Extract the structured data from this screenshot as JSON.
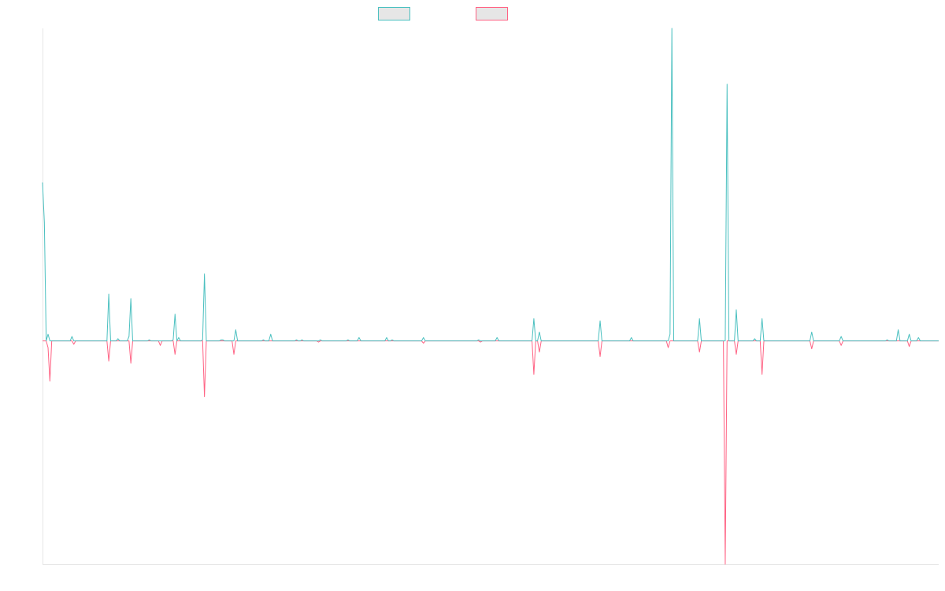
{
  "chart_data": {
    "type": "line",
    "title": "",
    "xlabel": "",
    "ylabel": "",
    "ylim": [
      -1.0,
      1.4
    ],
    "grid": false,
    "legend_position": "top-center",
    "colors": {
      "series_a": "#4bc0c0",
      "series_b": "#ff6384",
      "legend_fill": "#e6e6e6",
      "axis": "#e6e6e6"
    },
    "series": [
      {
        "key": "a",
        "color": "#4bc0c0",
        "points": [
          [
            0,
            0.71
          ],
          [
            1,
            0.53
          ],
          [
            2,
            0.0
          ],
          [
            3,
            0.03
          ],
          [
            4,
            0.0
          ],
          [
            15,
            0.0
          ],
          [
            16,
            0.02
          ],
          [
            17,
            0.0
          ],
          [
            18,
            0.0
          ],
          [
            19,
            0.0
          ],
          [
            35,
            0.0
          ],
          [
            36,
            0.21
          ],
          [
            37,
            0.0
          ],
          [
            40,
            0.0
          ],
          [
            41,
            0.01
          ],
          [
            42,
            0.0
          ],
          [
            46,
            0.0
          ],
          [
            47,
            0.02
          ],
          [
            48,
            0.19
          ],
          [
            49,
            0.0
          ],
          [
            57,
            0.0
          ],
          [
            58,
            0.005
          ],
          [
            59,
            0.0
          ],
          [
            70,
            0.0
          ],
          [
            71,
            0.005
          ],
          [
            72,
            0.12
          ],
          [
            73,
            0.0
          ],
          [
            74,
            0.015
          ],
          [
            75,
            0.0
          ],
          [
            86,
            0.0
          ],
          [
            87,
            0.005
          ],
          [
            88,
            0.3
          ],
          [
            89,
            0.0
          ],
          [
            96,
            0.0
          ],
          [
            97,
            0.005
          ],
          [
            98,
            0.005
          ],
          [
            99,
            0.0
          ],
          [
            104,
            0.0
          ],
          [
            105,
            0.05
          ],
          [
            106,
            0.0
          ],
          [
            119,
            0.0
          ],
          [
            120,
            0.005
          ],
          [
            121,
            0.0
          ],
          [
            123,
            0.0
          ],
          [
            124,
            0.03
          ],
          [
            125,
            0.0
          ],
          [
            137,
            0.0
          ],
          [
            138,
            0.005
          ],
          [
            139,
            0.0
          ],
          [
            140,
            0.0
          ],
          [
            141,
            0.005
          ],
          [
            142,
            0.0
          ],
          [
            150,
            0.0
          ],
          [
            151,
            0.005
          ],
          [
            152,
            0.0
          ],
          [
            165,
            0.0
          ],
          [
            166,
            0.005
          ],
          [
            167,
            0.0
          ],
          [
            171,
            0.0
          ],
          [
            172,
            0.015
          ],
          [
            173,
            0.0
          ],
          [
            186,
            0.0
          ],
          [
            187,
            0.015
          ],
          [
            188,
            0.0
          ],
          [
            189,
            0.0
          ],
          [
            190,
            0.005
          ],
          [
            191,
            0.0
          ],
          [
            206,
            0.0
          ],
          [
            207,
            0.015
          ],
          [
            208,
            0.0
          ],
          [
            236,
            0.0
          ],
          [
            237,
            0.005
          ],
          [
            238,
            0.0
          ],
          [
            246,
            0.0
          ],
          [
            247,
            0.015
          ],
          [
            248,
            0.0
          ],
          [
            266,
            0.0
          ],
          [
            267,
            0.1
          ],
          [
            268,
            0.0
          ],
          [
            269,
            0.0
          ],
          [
            270,
            0.04
          ],
          [
            271,
            0.0
          ],
          [
            302,
            0.0
          ],
          [
            303,
            0.09
          ],
          [
            304,
            0.0
          ],
          [
            319,
            0.0
          ],
          [
            320,
            0.015
          ],
          [
            321,
            0.0
          ],
          [
            340,
            0.0
          ],
          [
            341,
            0.03
          ],
          [
            342,
            1.4
          ],
          [
            343,
            0.0
          ],
          [
            356,
            0.0
          ],
          [
            357,
            0.1
          ],
          [
            358,
            0.0
          ],
          [
            371,
            0.0
          ],
          [
            372,
            1.15
          ],
          [
            373,
            0.0
          ],
          [
            376,
            0.0
          ],
          [
            377,
            0.14
          ],
          [
            378,
            0.0
          ],
          [
            386,
            0.0
          ],
          [
            387,
            0.01
          ],
          [
            388,
            0.0
          ],
          [
            390,
            0.0
          ],
          [
            391,
            0.1
          ],
          [
            392,
            0.0
          ],
          [
            417,
            0.0
          ],
          [
            418,
            0.04
          ],
          [
            419,
            0.0
          ],
          [
            433,
            0.0
          ],
          [
            434,
            0.02
          ],
          [
            435,
            0.0
          ],
          [
            458,
            0.0
          ],
          [
            459,
            0.005
          ],
          [
            460,
            0.0
          ],
          [
            464,
            0.0
          ],
          [
            465,
            0.05
          ],
          [
            466,
            0.0
          ],
          [
            470,
            0.0
          ],
          [
            471,
            0.03
          ],
          [
            472,
            0.0
          ],
          [
            475,
            0.0
          ],
          [
            476,
            0.015
          ],
          [
            477,
            0.0
          ],
          [
            487,
            0.0
          ]
        ]
      },
      {
        "key": "b",
        "color": "#ff6384",
        "points": [
          [
            0,
            0.0
          ],
          [
            1,
            0.0
          ],
          [
            2,
            0.0
          ],
          [
            3,
            -0.03
          ],
          [
            4,
            -0.18
          ],
          [
            5,
            0.0
          ],
          [
            15,
            0.0
          ],
          [
            16,
            0.0
          ],
          [
            17,
            -0.015
          ],
          [
            18,
            0.0
          ],
          [
            35,
            0.0
          ],
          [
            36,
            -0.09
          ],
          [
            37,
            0.0
          ],
          [
            47,
            0.0
          ],
          [
            48,
            -0.1
          ],
          [
            49,
            0.0
          ],
          [
            63,
            0.0
          ],
          [
            64,
            -0.02
          ],
          [
            65,
            0.0
          ],
          [
            71,
            0.0
          ],
          [
            72,
            -0.06
          ],
          [
            73,
            0.0
          ],
          [
            87,
            0.0
          ],
          [
            88,
            -0.25
          ],
          [
            89,
            0.0
          ],
          [
            103,
            0.0
          ],
          [
            104,
            -0.06
          ],
          [
            105,
            0.0
          ],
          [
            149,
            0.0
          ],
          [
            150,
            -0.005
          ],
          [
            151,
            0.0
          ],
          [
            206,
            0.0
          ],
          [
            207,
            -0.01
          ],
          [
            208,
            0.0
          ],
          [
            237,
            0.0
          ],
          [
            238,
            -0.005
          ],
          [
            239,
            0.0
          ],
          [
            266,
            0.0
          ],
          [
            267,
            -0.15
          ],
          [
            268,
            0.0
          ],
          [
            269,
            0.0
          ],
          [
            270,
            -0.05
          ],
          [
            271,
            0.0
          ],
          [
            302,
            0.0
          ],
          [
            303,
            -0.07
          ],
          [
            304,
            0.0
          ],
          [
            339,
            0.0
          ],
          [
            340,
            -0.03
          ],
          [
            341,
            0.0
          ],
          [
            356,
            0.0
          ],
          [
            357,
            -0.05
          ],
          [
            358,
            0.0
          ],
          [
            370,
            0.0
          ],
          [
            371,
            -1.0
          ],
          [
            372,
            0.0
          ],
          [
            376,
            0.0
          ],
          [
            377,
            -0.06
          ],
          [
            378,
            0.0
          ],
          [
            390,
            0.0
          ],
          [
            391,
            -0.15
          ],
          [
            392,
            0.0
          ],
          [
            417,
            0.0
          ],
          [
            418,
            -0.035
          ],
          [
            419,
            0.0
          ],
          [
            433,
            0.0
          ],
          [
            434,
            -0.02
          ],
          [
            435,
            0.0
          ],
          [
            470,
            0.0
          ],
          [
            471,
            -0.025
          ],
          [
            472,
            0.0
          ],
          [
            487,
            0.0
          ]
        ]
      }
    ]
  }
}
